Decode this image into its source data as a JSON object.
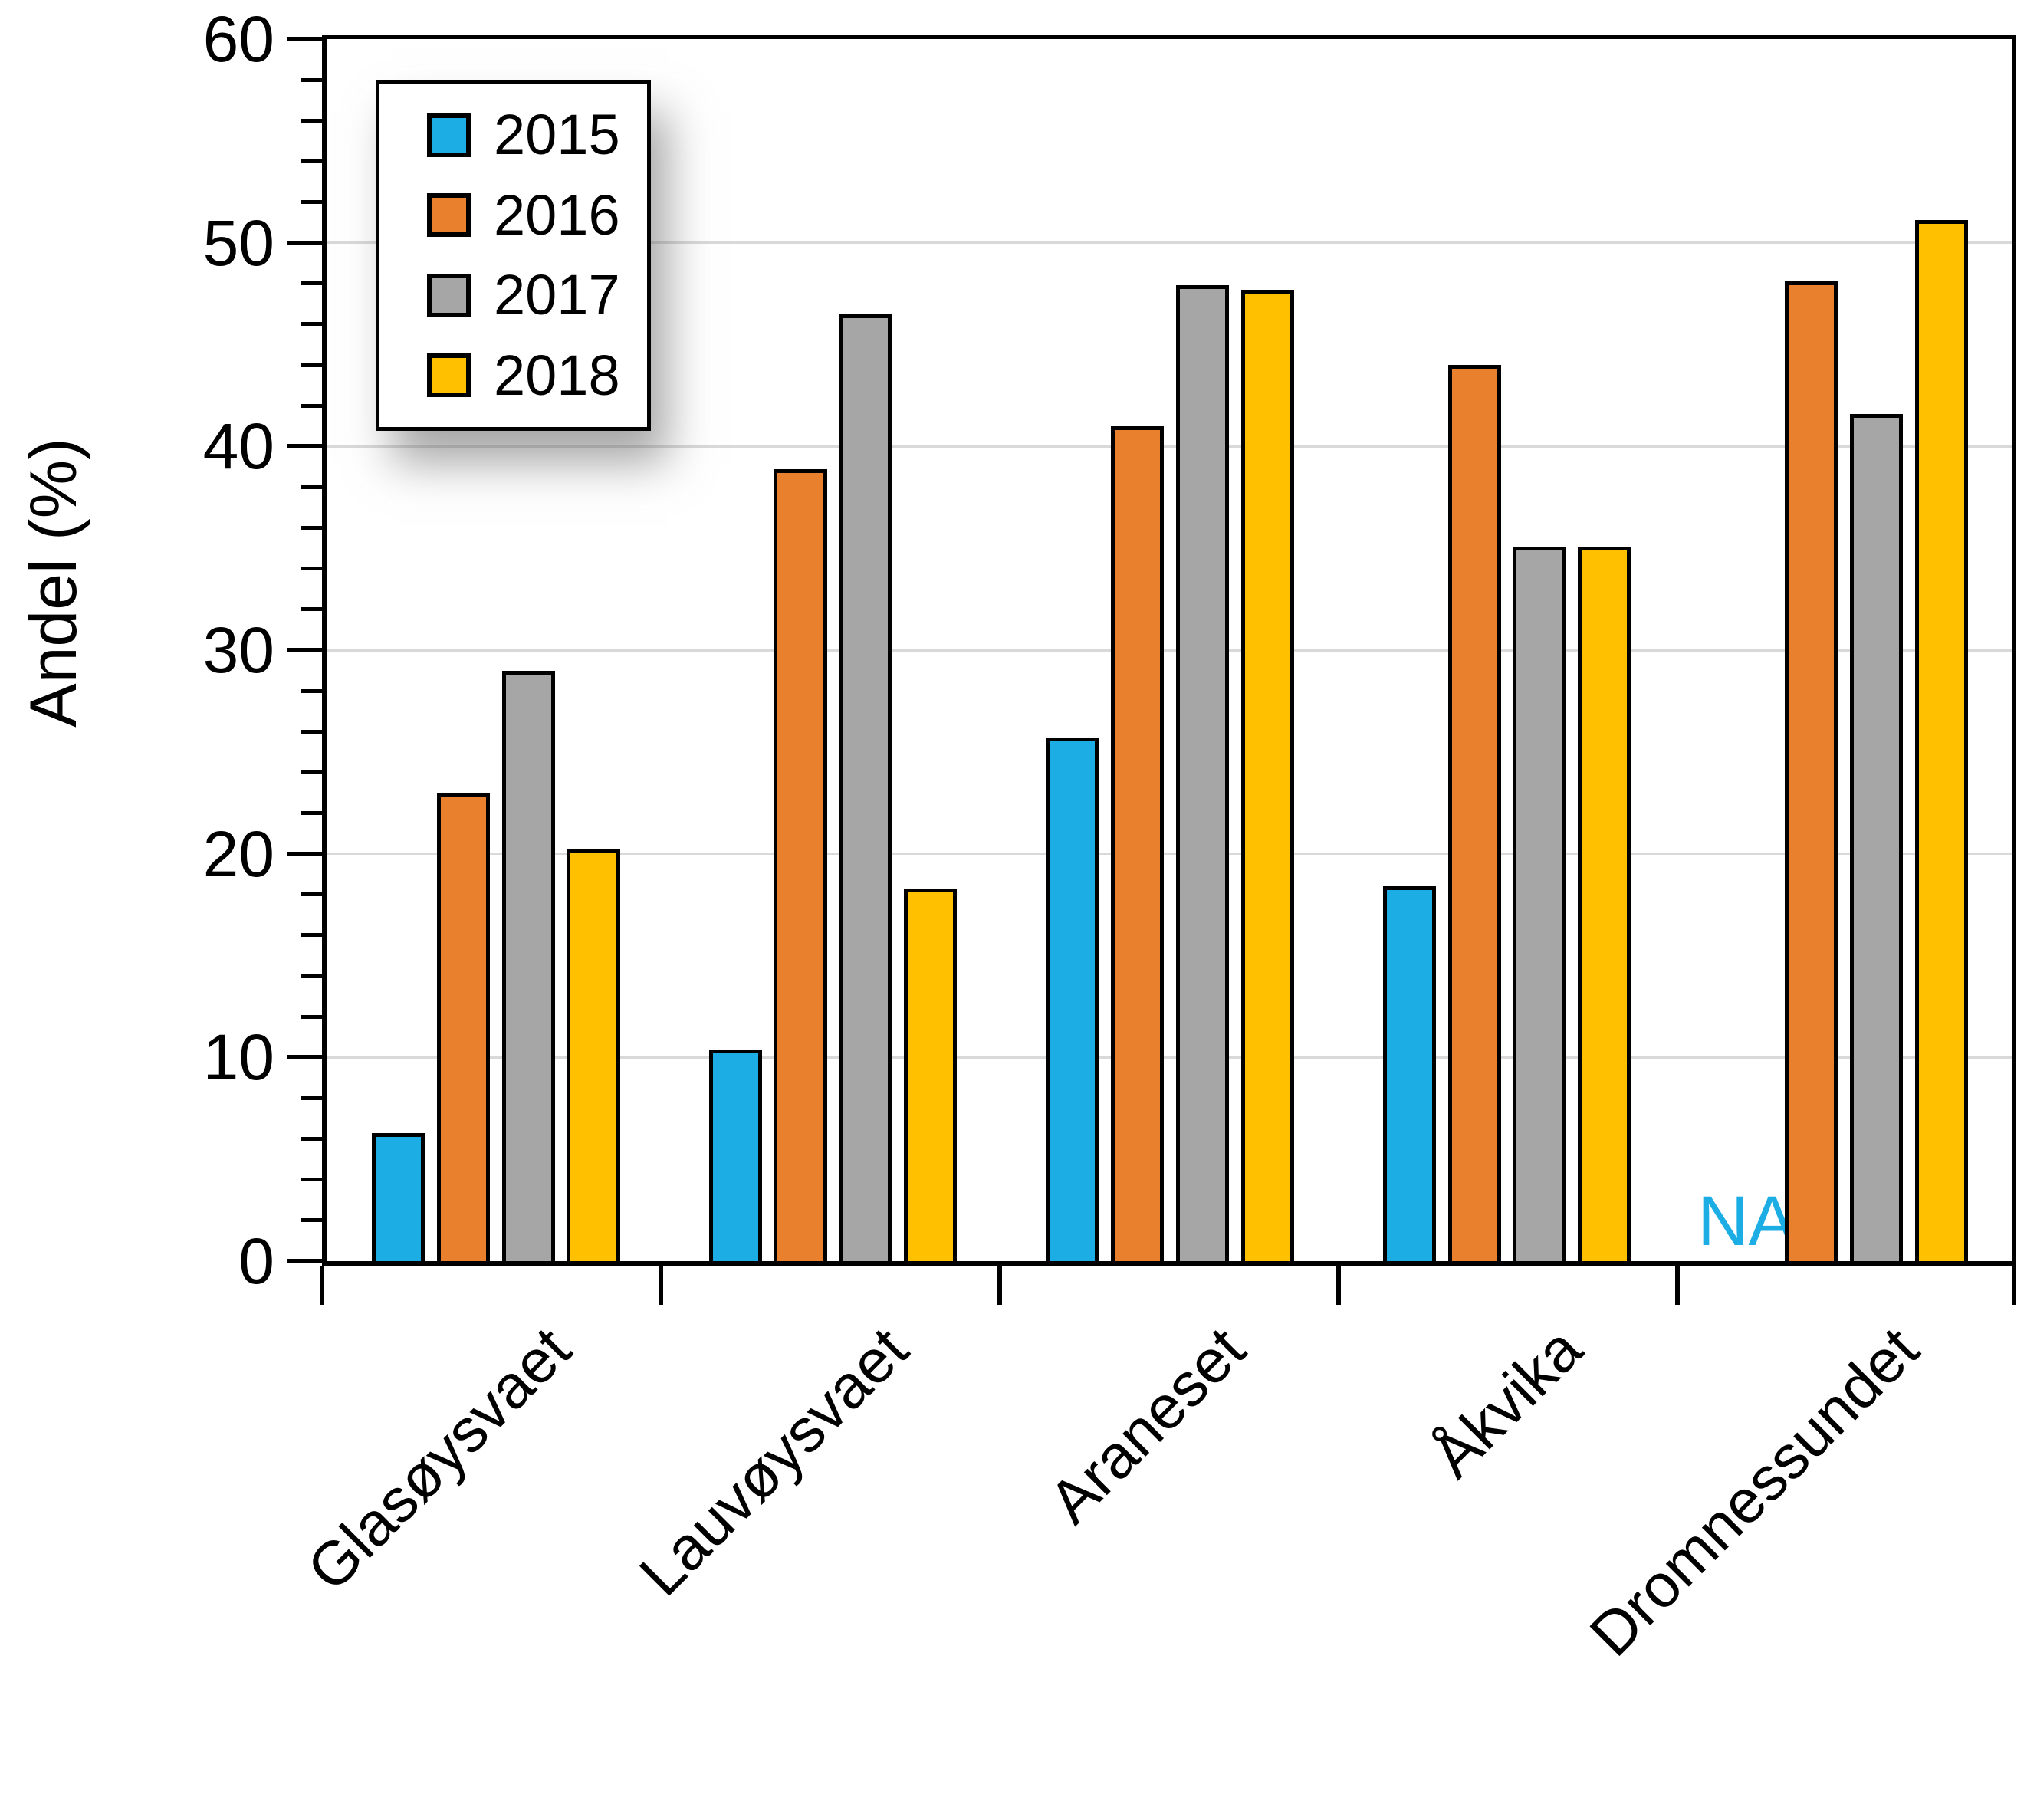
{
  "chart_data": {
    "type": "bar",
    "title": "",
    "ylabel": "Andel (%)",
    "xlabel": "",
    "ylim": [
      0,
      60
    ],
    "y_major_step": 10,
    "y_minor_step": 2,
    "y_ticks": [
      "0",
      "10",
      "20",
      "30",
      "40",
      "50",
      "60"
    ],
    "grid": "horizontal major gridlines only",
    "gridline_color": "#D9D9D9",
    "axis_color": "#000000",
    "bar_outline_color": "#000000",
    "legend_position": "inside top-left, white box with black border and drop shadow",
    "categories": [
      "Glasøysvaet",
      "Lauvøysvaet",
      "Araneset",
      "Åkvika",
      "Dromnessundet"
    ],
    "series": [
      {
        "name": "2015",
        "color": "#1CADE4",
        "values": [
          6.3,
          10.4,
          25.7,
          18.4,
          null
        ]
      },
      {
        "name": "2016",
        "color": "#E8802E",
        "values": [
          23.0,
          38.9,
          41.0,
          44.0,
          48.1
        ]
      },
      {
        "name": "2017",
        "color": "#A6A6A6",
        "values": [
          29.0,
          46.5,
          47.9,
          35.1,
          41.6
        ]
      },
      {
        "name": "2018",
        "color": "#FFC000",
        "values": [
          20.2,
          18.3,
          47.7,
          35.1,
          51.1
        ]
      }
    ],
    "missing_value_label": {
      "text": "NA",
      "series": "2015",
      "category": "Dromnessundet",
      "color": "#1CADE4"
    }
  }
}
